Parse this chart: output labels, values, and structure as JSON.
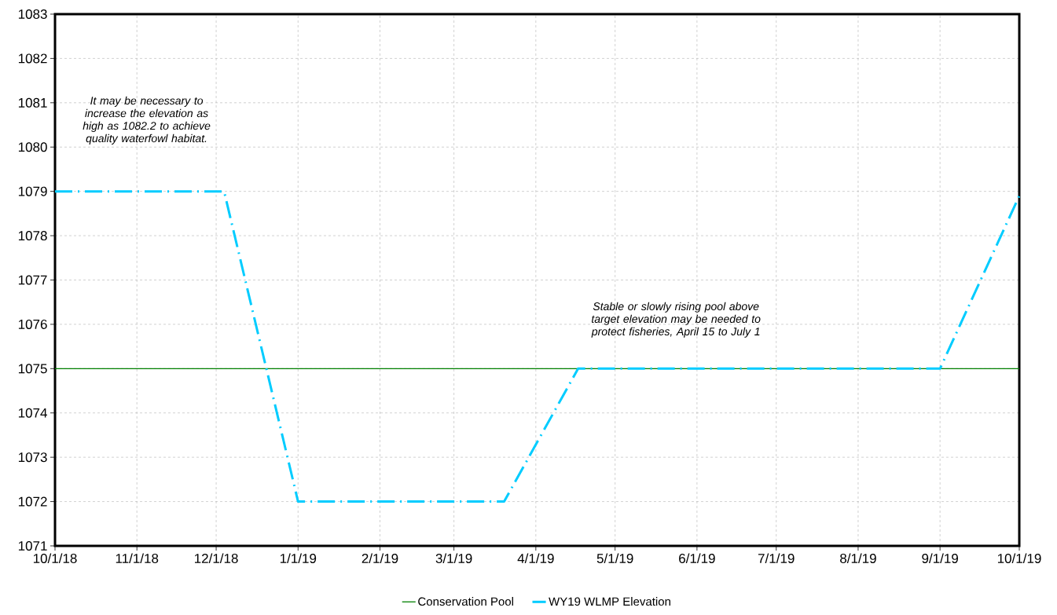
{
  "chart_data": {
    "type": "line",
    "x": [
      "2018-10-01",
      "2018-12-04",
      "2019-01-01",
      "2019-03-20",
      "2019-04-17",
      "2019-09-01",
      "2019-10-01"
    ],
    "series": [
      {
        "name": "WY19 WLMP Elevation",
        "color": "#00ccff",
        "line_style": "dashdot",
        "values": [
          1079,
          1079,
          1072,
          1072,
          1075,
          1075,
          1078.9
        ]
      }
    ],
    "ref_lines": [
      {
        "axis": "y",
        "value": 1075,
        "label": "Conservation Pool",
        "color": "#008000",
        "line_style": "solid"
      }
    ],
    "xlim": [
      "2018-10-01",
      "2019-10-01"
    ],
    "xticks": [
      {
        "value": "2018-10-01",
        "label": "10/1/18"
      },
      {
        "value": "2018-11-01",
        "label": "11/1/18"
      },
      {
        "value": "2018-12-01",
        "label": "12/1/18"
      },
      {
        "value": "2019-01-01",
        "label": "1/1/19"
      },
      {
        "value": "2019-02-01",
        "label": "2/1/19"
      },
      {
        "value": "2019-03-01",
        "label": "3/1/19"
      },
      {
        "value": "2019-04-01",
        "label": "4/1/19"
      },
      {
        "value": "2019-05-01",
        "label": "5/1/19"
      },
      {
        "value": "2019-06-01",
        "label": "6/1/19"
      },
      {
        "value": "2019-07-01",
        "label": "7/1/19"
      },
      {
        "value": "2019-08-01",
        "label": "8/1/19"
      },
      {
        "value": "2019-09-01",
        "label": "9/1/19"
      },
      {
        "value": "2019-10-01",
        "label": "10/1/19"
      }
    ],
    "ylim": [
      1071,
      1083
    ],
    "yticks": [
      1071,
      1072,
      1073,
      1074,
      1075,
      1076,
      1077,
      1078,
      1079,
      1080,
      1081,
      1082,
      1083
    ],
    "grid": true,
    "legend": "bottom",
    "annotations": [
      "It may be necessary to increase the elevation as high as 1082.2 to achieve quality waterfowl habitat.",
      "Stable or slowly rising pool above target elevation may be needed to protect fisheries, April 15 to July 1"
    ]
  }
}
